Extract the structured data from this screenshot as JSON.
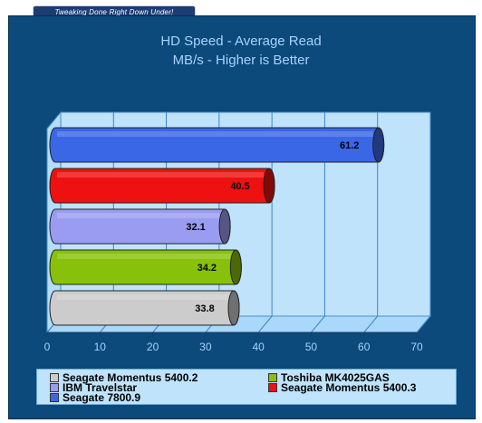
{
  "header": {
    "banner": "Tweaking Done Right Down Under!"
  },
  "chart_data": {
    "type": "bar",
    "orientation": "horizontal",
    "title": "HD Speed - Average Read",
    "subtitle": "MB/s - Higher is Better",
    "xlim": [
      0,
      70
    ],
    "xticks": [
      0,
      10,
      20,
      30,
      40,
      50,
      60,
      70
    ],
    "grid": true,
    "legend_position": "bottom",
    "series": [
      {
        "name": "Seagate 7800.9",
        "value": 61.2,
        "color": "#3a67e6"
      },
      {
        "name": "Seagate Momentus 5400.3",
        "value": 40.5,
        "color": "#ee1111"
      },
      {
        "name": "IBM Travelstar",
        "value": 32.1,
        "color": "#9a9cf2"
      },
      {
        "name": "Toshiba MK4025GAS",
        "value": 34.2,
        "color": "#88c10a"
      },
      {
        "name": "Seagate Momentus 5400.2",
        "value": 33.8,
        "color": "#cccccc"
      }
    ],
    "legend_order": [
      "Seagate Momentus 5400.2",
      "Toshiba MK4025GAS",
      "IBM Travelstar",
      "Seagate Momentus 5400.3",
      "Seagate 7800.9"
    ]
  }
}
